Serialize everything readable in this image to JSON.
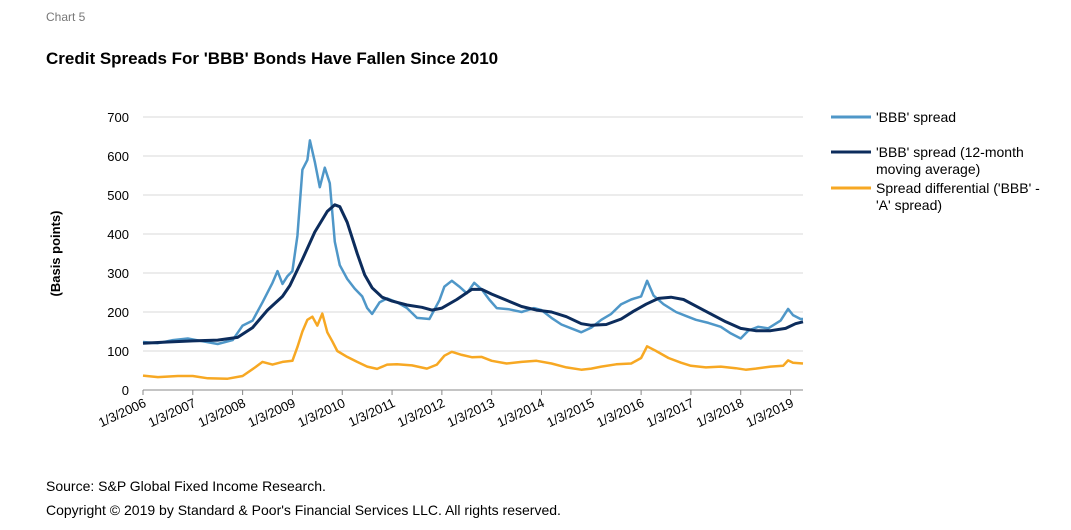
{
  "header": {
    "label": "Chart 5",
    "title": "Credit Spreads For 'BBB' Bonds Have Fallen Since 2010"
  },
  "footer": {
    "source": "Source: S&P Global Fixed Income Research.",
    "copyright": "Copyright © 2019 by Standard & Poor's Financial Services LLC. All rights reserved."
  },
  "chart_data": {
    "type": "line",
    "title": "Credit Spreads For 'BBB' Bonds Have Fallen Since 2010",
    "ylabel": "(Basis points)",
    "xlabel": "",
    "ylim": [
      0,
      700
    ],
    "yticks": [
      0,
      100,
      200,
      300,
      400,
      500,
      600,
      700
    ],
    "xlim": [
      2006.0,
      2019.25
    ],
    "xtick_labels": [
      "1/3/2006",
      "1/3/2007",
      "1/3/2008",
      "1/3/2009",
      "1/3/2010",
      "1/3/2011",
      "1/3/2012",
      "1/3/2013",
      "1/3/2014",
      "1/3/2015",
      "1/3/2016",
      "1/3/2017",
      "1/3/2018",
      "1/3/2019"
    ],
    "xtick_values": [
      2006,
      2007,
      2008,
      2009,
      2010,
      2011,
      2012,
      2013,
      2014,
      2015,
      2016,
      2017,
      2018,
      2019
    ],
    "grid": "horizontal",
    "legend_position": "right",
    "series": [
      {
        "name": "'BBB' spread",
        "color": "#4f97c8",
        "points": [
          [
            2006.0,
            123
          ],
          [
            2006.3,
            120
          ],
          [
            2006.6,
            128
          ],
          [
            2006.9,
            132
          ],
          [
            2007.2,
            125
          ],
          [
            2007.5,
            118
          ],
          [
            2007.8,
            128
          ],
          [
            2008.0,
            165
          ],
          [
            2008.2,
            178
          ],
          [
            2008.4,
            225
          ],
          [
            2008.6,
            275
          ],
          [
            2008.7,
            305
          ],
          [
            2008.8,
            272
          ],
          [
            2008.9,
            292
          ],
          [
            2009.0,
            305
          ],
          [
            2009.1,
            395
          ],
          [
            2009.2,
            565
          ],
          [
            2009.3,
            590
          ],
          [
            2009.35,
            640
          ],
          [
            2009.45,
            585
          ],
          [
            2009.55,
            520
          ],
          [
            2009.65,
            570
          ],
          [
            2009.75,
            530
          ],
          [
            2009.85,
            380
          ],
          [
            2009.95,
            320
          ],
          [
            2010.1,
            285
          ],
          [
            2010.25,
            260
          ],
          [
            2010.4,
            240
          ],
          [
            2010.5,
            210
          ],
          [
            2010.6,
            195
          ],
          [
            2010.75,
            225
          ],
          [
            2010.9,
            235
          ],
          [
            2011.1,
            225
          ],
          [
            2011.3,
            210
          ],
          [
            2011.5,
            185
          ],
          [
            2011.75,
            182
          ],
          [
            2011.95,
            230
          ],
          [
            2012.05,
            265
          ],
          [
            2012.2,
            280
          ],
          [
            2012.35,
            265
          ],
          [
            2012.5,
            248
          ],
          [
            2012.65,
            275
          ],
          [
            2012.8,
            258
          ],
          [
            2012.95,
            232
          ],
          [
            2013.1,
            210
          ],
          [
            2013.35,
            207
          ],
          [
            2013.6,
            200
          ],
          [
            2013.85,
            210
          ],
          [
            2014.0,
            205
          ],
          [
            2014.2,
            185
          ],
          [
            2014.4,
            168
          ],
          [
            2014.6,
            158
          ],
          [
            2014.8,
            148
          ],
          [
            2015.0,
            160
          ],
          [
            2015.2,
            180
          ],
          [
            2015.4,
            195
          ],
          [
            2015.6,
            220
          ],
          [
            2015.8,
            232
          ],
          [
            2016.0,
            240
          ],
          [
            2016.12,
            280
          ],
          [
            2016.25,
            242
          ],
          [
            2016.45,
            220
          ],
          [
            2016.7,
            200
          ],
          [
            2016.9,
            190
          ],
          [
            2017.1,
            180
          ],
          [
            2017.35,
            172
          ],
          [
            2017.6,
            162
          ],
          [
            2017.8,
            145
          ],
          [
            2018.0,
            132
          ],
          [
            2018.15,
            152
          ],
          [
            2018.35,
            162
          ],
          [
            2018.55,
            158
          ],
          [
            2018.8,
            178
          ],
          [
            2018.95,
            208
          ],
          [
            2019.05,
            192
          ],
          [
            2019.2,
            182
          ],
          [
            2019.25,
            182
          ]
        ]
      },
      {
        "name": "'BBB' spread (12-month moving average)",
        "color": "#0c2c5c",
        "points": [
          [
            2006.0,
            120
          ],
          [
            2006.5,
            123
          ],
          [
            2007.0,
            126
          ],
          [
            2007.5,
            128
          ],
          [
            2007.9,
            135
          ],
          [
            2008.2,
            160
          ],
          [
            2008.5,
            205
          ],
          [
            2008.8,
            240
          ],
          [
            2008.95,
            268
          ],
          [
            2009.2,
            335
          ],
          [
            2009.45,
            405
          ],
          [
            2009.7,
            458
          ],
          [
            2009.85,
            475
          ],
          [
            2009.95,
            470
          ],
          [
            2010.1,
            430
          ],
          [
            2010.3,
            350
          ],
          [
            2010.45,
            295
          ],
          [
            2010.6,
            262
          ],
          [
            2010.8,
            238
          ],
          [
            2011.0,
            228
          ],
          [
            2011.3,
            218
          ],
          [
            2011.6,
            212
          ],
          [
            2011.8,
            205
          ],
          [
            2012.0,
            210
          ],
          [
            2012.3,
            232
          ],
          [
            2012.6,
            258
          ],
          [
            2012.8,
            258
          ],
          [
            2013.0,
            246
          ],
          [
            2013.3,
            230
          ],
          [
            2013.6,
            214
          ],
          [
            2013.9,
            205
          ],
          [
            2014.2,
            200
          ],
          [
            2014.5,
            188
          ],
          [
            2014.8,
            170
          ],
          [
            2015.0,
            166
          ],
          [
            2015.3,
            168
          ],
          [
            2015.6,
            182
          ],
          [
            2015.85,
            202
          ],
          [
            2016.1,
            220
          ],
          [
            2016.35,
            235
          ],
          [
            2016.6,
            238
          ],
          [
            2016.85,
            232
          ],
          [
            2017.1,
            215
          ],
          [
            2017.4,
            195
          ],
          [
            2017.7,
            175
          ],
          [
            2018.0,
            158
          ],
          [
            2018.3,
            152
          ],
          [
            2018.6,
            152
          ],
          [
            2018.9,
            158
          ],
          [
            2019.1,
            170
          ],
          [
            2019.25,
            175
          ]
        ]
      },
      {
        "name": "Spread differential ('BBB' - 'A' spread)",
        "color": "#f7a823",
        "points": [
          [
            2006.0,
            37
          ],
          [
            2006.3,
            33
          ],
          [
            2006.7,
            36
          ],
          [
            2007.0,
            36
          ],
          [
            2007.3,
            30
          ],
          [
            2007.7,
            29
          ],
          [
            2008.0,
            36
          ],
          [
            2008.25,
            58
          ],
          [
            2008.4,
            72
          ],
          [
            2008.6,
            65
          ],
          [
            2008.8,
            72
          ],
          [
            2009.0,
            75
          ],
          [
            2009.1,
            110
          ],
          [
            2009.2,
            150
          ],
          [
            2009.3,
            180
          ],
          [
            2009.4,
            188
          ],
          [
            2009.5,
            165
          ],
          [
            2009.6,
            196
          ],
          [
            2009.7,
            148
          ],
          [
            2009.8,
            125
          ],
          [
            2009.9,
            100
          ],
          [
            2010.1,
            85
          ],
          [
            2010.3,
            72
          ],
          [
            2010.5,
            60
          ],
          [
            2010.7,
            54
          ],
          [
            2010.9,
            65
          ],
          [
            2011.1,
            66
          ],
          [
            2011.4,
            63
          ],
          [
            2011.7,
            55
          ],
          [
            2011.9,
            65
          ],
          [
            2012.05,
            88
          ],
          [
            2012.2,
            98
          ],
          [
            2012.4,
            90
          ],
          [
            2012.6,
            84
          ],
          [
            2012.8,
            85
          ],
          [
            2013.0,
            75
          ],
          [
            2013.3,
            68
          ],
          [
            2013.6,
            72
          ],
          [
            2013.9,
            75
          ],
          [
            2014.2,
            68
          ],
          [
            2014.5,
            58
          ],
          [
            2014.8,
            52
          ],
          [
            2015.0,
            55
          ],
          [
            2015.2,
            60
          ],
          [
            2015.5,
            66
          ],
          [
            2015.8,
            68
          ],
          [
            2016.0,
            82
          ],
          [
            2016.12,
            112
          ],
          [
            2016.3,
            100
          ],
          [
            2016.55,
            82
          ],
          [
            2016.8,
            70
          ],
          [
            2017.0,
            62
          ],
          [
            2017.3,
            58
          ],
          [
            2017.6,
            60
          ],
          [
            2017.9,
            56
          ],
          [
            2018.1,
            52
          ],
          [
            2018.3,
            55
          ],
          [
            2018.6,
            60
          ],
          [
            2018.85,
            62
          ],
          [
            2018.95,
            76
          ],
          [
            2019.05,
            70
          ],
          [
            2019.25,
            68
          ]
        ]
      }
    ]
  }
}
